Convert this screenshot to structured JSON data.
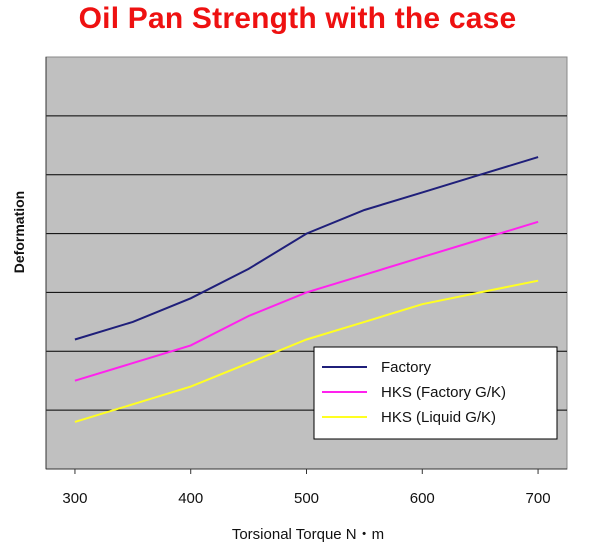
{
  "chart_data": {
    "type": "line",
    "title": "Oil Pan Strength with the case",
    "xlabel": "Torsional Torque N・m",
    "ylabel": "Deformation",
    "x": [
      300,
      350,
      400,
      450,
      500,
      550,
      600,
      650,
      700
    ],
    "xticks": [
      "300",
      "400",
      "500",
      "600",
      "700"
    ],
    "xticks_values": [
      300,
      400,
      500,
      600,
      700
    ],
    "xlim": [
      275,
      725
    ],
    "ylim": [
      0,
      7
    ],
    "grid": true,
    "legend": "bottom-right",
    "background_color": "#c0c0c0",
    "series": [
      {
        "name": "Factory",
        "color": "#1f1f7a",
        "values": [
          2.2,
          2.5,
          2.9,
          3.4,
          4.0,
          4.4,
          4.7,
          5.0,
          5.3
        ]
      },
      {
        "name": "HKS (Factory G/K)",
        "color": "#ff22ee",
        "values": [
          1.5,
          1.8,
          2.1,
          2.6,
          3.0,
          3.3,
          3.6,
          3.9,
          4.2
        ]
      },
      {
        "name": "HKS (Liquid G/K)",
        "color": "#ffff22",
        "values": [
          0.8,
          1.1,
          1.4,
          1.8,
          2.2,
          2.5,
          2.8,
          3.0,
          3.2
        ]
      }
    ]
  }
}
